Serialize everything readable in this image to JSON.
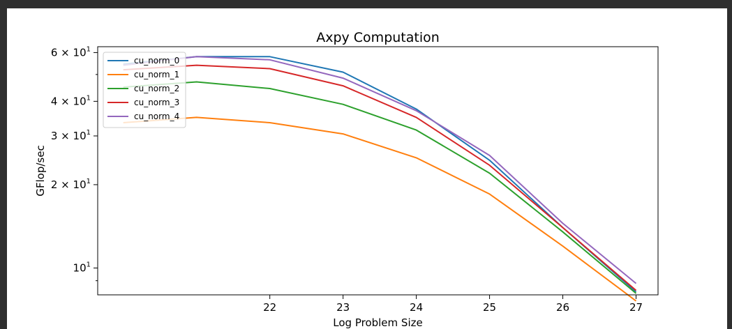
{
  "chart_data": {
    "type": "line",
    "title": "Axpy Computation",
    "xlabel": "Log Problem Size",
    "ylabel": "GFlop/sec",
    "yscale": "log",
    "xlim": [
      19.65,
      27.3
    ],
    "ylim": [
      8.0,
      63.0
    ],
    "x": [
      20,
      21,
      22,
      23,
      24,
      25,
      26,
      27
    ],
    "x_ticks": [
      22,
      23,
      24,
      25,
      26,
      27
    ],
    "x_tick_labels": [
      "22",
      "23",
      "24",
      "25",
      "26",
      "27"
    ],
    "y_major_ticks": [
      {
        "value": 10,
        "base": "10",
        "exp": "1",
        "mult": ""
      },
      {
        "value": 20,
        "base": "10",
        "exp": "1",
        "mult": "2 × "
      },
      {
        "value": 30,
        "base": "10",
        "exp": "1",
        "mult": "3 × "
      },
      {
        "value": 40,
        "base": "10",
        "exp": "1",
        "mult": "4 × "
      },
      {
        "value": 60,
        "base": "10",
        "exp": "1",
        "mult": "6 × "
      }
    ],
    "y_minor_ticks": [
      9,
      50
    ],
    "grid": false,
    "legend_position": "top-left",
    "series": [
      {
        "name": "cu_norm_0",
        "color": "#1f77b4",
        "values": [
          54.5,
          58.0,
          58.0,
          51.0,
          37.5,
          24.5,
          14.0,
          8.2
        ]
      },
      {
        "name": "cu_norm_1",
        "color": "#ff7f0e",
        "values": [
          33.5,
          35.0,
          33.5,
          30.5,
          25.0,
          18.5,
          12.0,
          7.6
        ]
      },
      {
        "name": "cu_norm_2",
        "color": "#2ca02c",
        "values": [
          45.0,
          47.0,
          44.5,
          39.0,
          31.5,
          22.0,
          13.5,
          8.1
        ]
      },
      {
        "name": "cu_norm_3",
        "color": "#d62728",
        "values": [
          52.0,
          54.0,
          52.5,
          45.5,
          35.0,
          23.5,
          14.0,
          8.3
        ]
      },
      {
        "name": "cu_norm_4",
        "color": "#9467bd",
        "values": [
          54.0,
          58.0,
          56.5,
          48.5,
          37.0,
          25.5,
          14.5,
          8.8
        ]
      }
    ]
  }
}
